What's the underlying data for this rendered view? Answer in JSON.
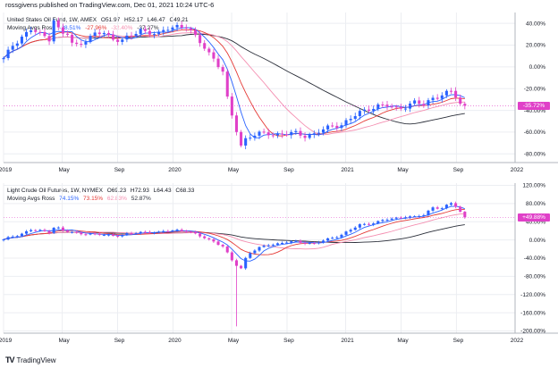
{
  "header": "rossgivens published on TradingView.com, Dec 01, 2021 10:24 UTC-6",
  "footer": "TradingView",
  "colors": {
    "up": "#2962ff",
    "down": "#e040c8",
    "ma1": "#2962ff",
    "ma2": "#e53935",
    "ma3": "#f48fb1",
    "ma4": "#2a2e39",
    "grid": "#eceef2",
    "axis": "#b2b5be",
    "badge": "#e040c8"
  },
  "x_labels": [
    "2019",
    "May",
    "Sep",
    "2020",
    "May",
    "Sep",
    "2021",
    "May",
    "Sep",
    "2022"
  ],
  "chart_data": [
    {
      "type": "candlestick",
      "title": "United States Oil Fund, 1W, AMEX",
      "ohlc": {
        "o": "O51.97",
        "h": "H52.17",
        "l": "L46.47",
        "c": "C49.21"
      },
      "legend_name": "Moving Avgs Ross",
      "legend_values": [
        "-28.51%",
        "-27.96%",
        "-32.40%",
        "-37.27%"
      ],
      "y_ticks": [
        "40.00%",
        "20.00%",
        "0.00%",
        "-20.00%",
        "-40.00%",
        "-60.00%",
        "-80.00%"
      ],
      "y_values": [
        40,
        20,
        0,
        -20,
        -40,
        -60,
        -80
      ],
      "ylim": [
        -88,
        50
      ],
      "last_value_label": "-35.72%",
      "last_value": -35.72,
      "series": [
        {
          "t": 0,
          "v": 7
        },
        {
          "t": 2,
          "v": 20
        },
        {
          "t": 4,
          "v": 28
        },
        {
          "t": 6,
          "v": 34
        },
        {
          "t": 8,
          "v": 30
        },
        {
          "t": 10,
          "v": 26
        },
        {
          "t": 11,
          "v": 44
        },
        {
          "t": 12,
          "v": 35
        },
        {
          "t": 13,
          "v": 30
        },
        {
          "t": 14,
          "v": 30
        },
        {
          "t": 15,
          "v": 21
        },
        {
          "t": 16,
          "v": 20
        },
        {
          "t": 18,
          "v": 25
        },
        {
          "t": 20,
          "v": 30
        },
        {
          "t": 22,
          "v": 31
        },
        {
          "t": 24,
          "v": 26
        },
        {
          "t": 26,
          "v": 25
        },
        {
          "t": 28,
          "v": 28
        },
        {
          "t": 30,
          "v": 34
        },
        {
          "t": 32,
          "v": 32
        },
        {
          "t": 34,
          "v": 30
        },
        {
          "t": 36,
          "v": 35
        },
        {
          "t": 38,
          "v": 38
        },
        {
          "t": 40,
          "v": 37
        },
        {
          "t": 42,
          "v": 27
        },
        {
          "t": 44,
          "v": 18
        },
        {
          "t": 46,
          "v": 8
        },
        {
          "t": 48,
          "v": -5
        },
        {
          "t": 49,
          "v": -30
        },
        {
          "t": 50,
          "v": -45
        },
        {
          "t": 51,
          "v": -58
        },
        {
          "t": 52,
          "v": -72
        },
        {
          "t": 53,
          "v": -66
        },
        {
          "t": 54,
          "v": -64
        },
        {
          "t": 56,
          "v": -62
        },
        {
          "t": 58,
          "v": -61
        },
        {
          "t": 60,
          "v": -62
        },
        {
          "t": 62,
          "v": -62
        },
        {
          "t": 64,
          "v": -61
        },
        {
          "t": 66,
          "v": -63
        },
        {
          "t": 68,
          "v": -62
        },
        {
          "t": 70,
          "v": -58
        },
        {
          "t": 72,
          "v": -54
        },
        {
          "t": 74,
          "v": -53
        },
        {
          "t": 76,
          "v": -48
        },
        {
          "t": 78,
          "v": -42
        },
        {
          "t": 80,
          "v": -38
        },
        {
          "t": 82,
          "v": -36
        },
        {
          "t": 84,
          "v": -36
        },
        {
          "t": 86,
          "v": -38
        },
        {
          "t": 88,
          "v": -36
        },
        {
          "t": 90,
          "v": -33
        },
        {
          "t": 92,
          "v": -35
        },
        {
          "t": 94,
          "v": -28
        },
        {
          "t": 96,
          "v": -26
        },
        {
          "t": 98,
          "v": -23
        },
        {
          "t": 99,
          "v": -27
        },
        {
          "t": 100,
          "v": -34
        },
        {
          "t": 101,
          "v": -35.72
        }
      ]
    },
    {
      "type": "candlestick",
      "title": "Light Crude Oil Futures, 1W, NYMEX",
      "ohlc": {
        "o": "O69.23",
        "h": "H72.93",
        "l": "L64.43",
        "c": "C68.33"
      },
      "legend_name": "Moving Avgs Ross",
      "legend_values": [
        "74.15%",
        "73.15%",
        "62.83%",
        "52.87%"
      ],
      "y_ticks": [
        "120.00%",
        "80.00%",
        "40.00%",
        "0.00%",
        "-40.00%",
        "-80.00%",
        "-120.00%",
        "-160.00%",
        "-200.00%"
      ],
      "y_values": [
        120,
        80,
        40,
        0,
        -40,
        -80,
        -120,
        -160,
        -200
      ],
      "ylim": [
        -205,
        125
      ],
      "last_value_label": "+49.88%",
      "last_value": 49.88,
      "series": [
        {
          "t": 0,
          "v": 0
        },
        {
          "t": 2,
          "v": 8
        },
        {
          "t": 4,
          "v": 14
        },
        {
          "t": 6,
          "v": 22
        },
        {
          "t": 8,
          "v": 20
        },
        {
          "t": 10,
          "v": 18
        },
        {
          "t": 11,
          "v": 28
        },
        {
          "t": 12,
          "v": 26
        },
        {
          "t": 13,
          "v": 20
        },
        {
          "t": 14,
          "v": 18
        },
        {
          "t": 16,
          "v": 15
        },
        {
          "t": 18,
          "v": 14
        },
        {
          "t": 20,
          "v": 12
        },
        {
          "t": 22,
          "v": 11
        },
        {
          "t": 24,
          "v": 10
        },
        {
          "t": 26,
          "v": 11
        },
        {
          "t": 28,
          "v": 14
        },
        {
          "t": 30,
          "v": 17
        },
        {
          "t": 32,
          "v": 18
        },
        {
          "t": 34,
          "v": 16
        },
        {
          "t": 36,
          "v": 20
        },
        {
          "t": 38,
          "v": 22
        },
        {
          "t": 40,
          "v": 20
        },
        {
          "t": 42,
          "v": 12
        },
        {
          "t": 44,
          "v": 5
        },
        {
          "t": 46,
          "v": -3
        },
        {
          "t": 48,
          "v": -15
        },
        {
          "t": 49,
          "v": -30
        },
        {
          "t": 50,
          "v": -45
        },
        {
          "t": 51,
          "v": -55
        },
        {
          "t": 52,
          "v": -62
        },
        {
          "t": 53,
          "v": -40
        },
        {
          "t": 54,
          "v": -28
        },
        {
          "t": 56,
          "v": -18
        },
        {
          "t": 58,
          "v": -10
        },
        {
          "t": 60,
          "v": -8
        },
        {
          "t": 62,
          "v": -5
        },
        {
          "t": 64,
          "v": -4
        },
        {
          "t": 66,
          "v": -6
        },
        {
          "t": 68,
          "v": -8
        },
        {
          "t": 70,
          "v": -2
        },
        {
          "t": 72,
          "v": 5
        },
        {
          "t": 74,
          "v": 12
        },
        {
          "t": 76,
          "v": 22
        },
        {
          "t": 78,
          "v": 33
        },
        {
          "t": 80,
          "v": 36
        },
        {
          "t": 82,
          "v": 40
        },
        {
          "t": 84,
          "v": 45
        },
        {
          "t": 86,
          "v": 48
        },
        {
          "t": 88,
          "v": 52
        },
        {
          "t": 90,
          "v": 50
        },
        {
          "t": 92,
          "v": 55
        },
        {
          "t": 94,
          "v": 72
        },
        {
          "t": 96,
          "v": 70
        },
        {
          "t": 98,
          "v": 80
        },
        {
          "t": 99,
          "v": 74
        },
        {
          "t": 100,
          "v": 62
        },
        {
          "t": 101,
          "v": 49.88
        }
      ],
      "spike": {
        "t": 51,
        "v": -190
      }
    }
  ]
}
